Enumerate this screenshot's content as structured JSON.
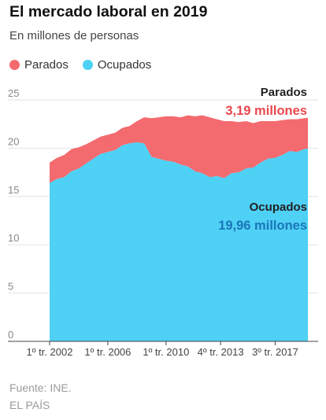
{
  "title": "El mercado laboral en 2019",
  "subtitle": "En millones de personas",
  "legend": [
    {
      "label": "Parados",
      "color": "#f36b6f"
    },
    {
      "label": "Ocupados",
      "color": "#4fd0f5"
    }
  ],
  "annotations": {
    "parados_label": "Parados",
    "parados_value": "3,19 millones",
    "ocupados_label": "Ocupados",
    "ocupados_value": "19,96 millones",
    "parados_value_color": "#e8474d",
    "ocupados_value_color": "#1a76b8"
  },
  "footer": {
    "source": "Fuente: INE.",
    "publisher": "EL PAÍS"
  },
  "chart_data": {
    "type": "area",
    "stacked": true,
    "ylim": [
      0,
      25
    ],
    "yticks": [
      0,
      5,
      10,
      15,
      20,
      25
    ],
    "grid": true,
    "legend_position": "top-left",
    "xlim": [
      2002.0,
      2019.75
    ],
    "xticks": [
      {
        "value": 2002.0,
        "label": "1º tr. 2002"
      },
      {
        "value": 2006.0,
        "label": "1º tr. 2006"
      },
      {
        "value": 2010.0,
        "label": "1º tr. 2010"
      },
      {
        "value": 2013.75,
        "label": "4º tr. 2013"
      },
      {
        "value": 2017.5,
        "label": "3º tr. 2017"
      }
    ],
    "x": [
      2002.0,
      2002.5,
      2003.0,
      2003.5,
      2004.0,
      2004.5,
      2005.0,
      2005.5,
      2006.0,
      2006.5,
      2007.0,
      2007.5,
      2008.0,
      2008.5,
      2009.0,
      2009.5,
      2010.0,
      2010.5,
      2011.0,
      2011.5,
      2012.0,
      2012.5,
      2013.0,
      2013.5,
      2014.0,
      2014.5,
      2015.0,
      2015.5,
      2016.0,
      2016.5,
      2017.0,
      2017.5,
      2018.0,
      2018.5,
      2019.0,
      2019.5,
      2019.75
    ],
    "series": [
      {
        "name": "Ocupados",
        "color": "#4fd0f5",
        "values": [
          16.4,
          16.8,
          17.0,
          17.6,
          17.9,
          18.4,
          18.9,
          19.4,
          19.6,
          19.8,
          20.3,
          20.5,
          20.6,
          20.5,
          19.1,
          18.9,
          18.7,
          18.6,
          18.3,
          18.1,
          17.6,
          17.4,
          17.0,
          17.1,
          16.9,
          17.4,
          17.5,
          17.9,
          18.0,
          18.5,
          18.9,
          19.0,
          19.3,
          19.7,
          19.6,
          19.9,
          19.96
        ]
      },
      {
        "name": "Parados",
        "color": "#f36b6f",
        "values": [
          2.1,
          2.2,
          2.3,
          2.3,
          2.2,
          2.0,
          1.9,
          1.8,
          1.8,
          1.8,
          1.8,
          1.8,
          2.2,
          2.7,
          4.0,
          4.3,
          4.6,
          4.7,
          4.9,
          5.3,
          5.7,
          6.0,
          6.2,
          5.9,
          5.9,
          5.4,
          5.2,
          4.9,
          4.6,
          4.3,
          3.9,
          3.8,
          3.6,
          3.3,
          3.4,
          3.2,
          3.19
        ]
      }
    ]
  }
}
